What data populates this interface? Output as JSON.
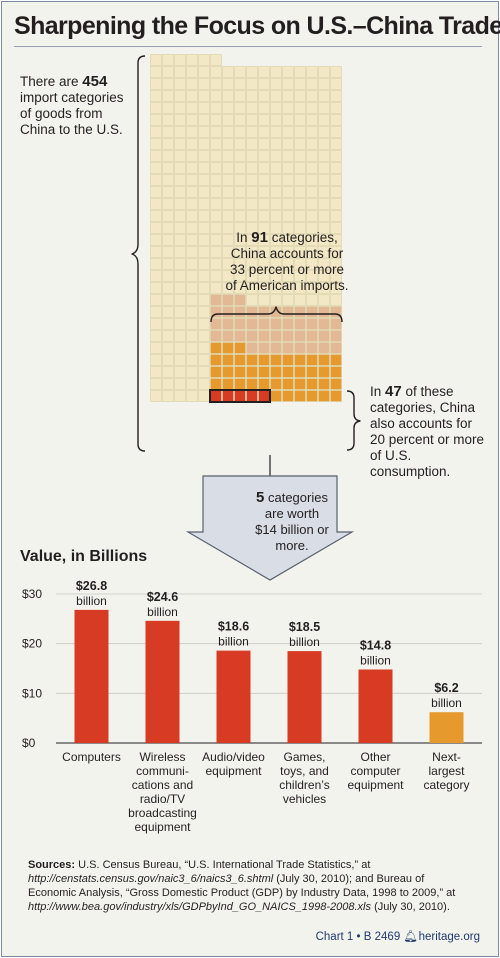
{
  "title": "Sharpening the Focus on U.S.–China Trade",
  "annotations": {
    "total": {
      "pre": "There are ",
      "num": "454",
      "post": " import categories of goods from China to the U.S."
    },
    "mid": {
      "pre": "In ",
      "num": "91",
      "post": " categories, China accounts for 33 percent or more of American imports."
    },
    "low": {
      "pre": "In ",
      "num": "47",
      "post": " of these categories, China also accounts for 20 percent or more of U.S. consumption."
    },
    "callout": {
      "num": "5",
      "line1": " categories",
      "line2": "are worth",
      "line3": "$14 billion or more."
    }
  },
  "grid": {
    "total": 454,
    "tier33": 91,
    "tier20": 47,
    "top5": 5,
    "colors": {
      "base": "#f2e8c6",
      "grid_line": "#d9cf9e",
      "tier33": "#e3b894",
      "tier20": "#e69a2e",
      "top5": "#d83b23",
      "outline": "#231f20"
    }
  },
  "chart_data": {
    "type": "bar",
    "title": "Value, in Billions",
    "categories": [
      "Computers",
      "Wireless communi-cations and radio/TV broadcasting equipment",
      "Audio/video equipment",
      "Games, toys, and children's vehicles",
      "Other computer equipment",
      "Next-largest category"
    ],
    "category_lines": [
      [
        "Computers"
      ],
      [
        "Wireless",
        "communi-",
        "cations and",
        "radio/TV",
        "broadcasting",
        "equipment"
      ],
      [
        "Audio/video",
        "equipment"
      ],
      [
        "Games,",
        "toys, and",
        "children’s",
        "vehicles"
      ],
      [
        "Other",
        "computer",
        "equipment"
      ],
      [
        "Next-",
        "largest",
        "category"
      ]
    ],
    "values": [
      26.8,
      24.6,
      18.6,
      18.5,
      14.8,
      6.2
    ],
    "value_labels": [
      "$26.8",
      "$24.6",
      "$18.6",
      "$18.5",
      "$14.8",
      "$6.2"
    ],
    "unit_label": "billion",
    "yticks": [
      0,
      10,
      20,
      30
    ],
    "ytick_labels": [
      "$0",
      "$10",
      "$20",
      "$30"
    ],
    "ylim": [
      0,
      30
    ],
    "grid": true,
    "bar_colors": [
      "#d83b23",
      "#d83b23",
      "#d83b23",
      "#d83b23",
      "#d83b23",
      "#e69a2e"
    ]
  },
  "sources": {
    "lead": "Sources:",
    "text1": " U.S. Census Bureau, “U.S. International Trade Statistics,” at ",
    "url1": "http://censtats.census.gov/naic3_6/naics3_6.shtml",
    "text2": " (July 30, 2010); and Bureau of Economic Analysis, “Gross Domestic Product (GDP) by Industry Data, 1998 to 2009,” at ",
    "url2": "http://www.bea.gov/industry/xls/GDPbyInd_GO_NAICS_1998-2008.xls",
    "text3": " (July 30, 2010)."
  },
  "footer": {
    "chart": "Chart 1",
    "sep": "•",
    "bulletin": "B 2469",
    "site": "heritage.org"
  }
}
